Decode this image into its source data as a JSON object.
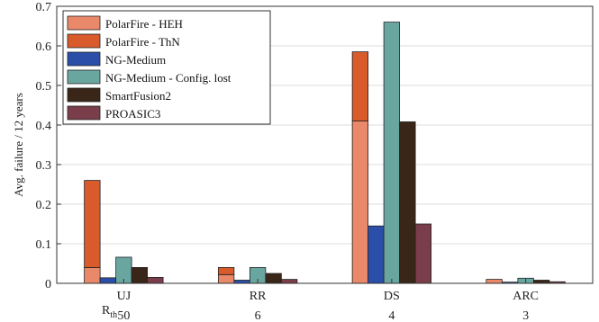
{
  "chart_data": {
    "type": "bar",
    "subtype": "grouped-stacked",
    "title": "",
    "xlabel": "",
    "ylabel": "Avg. failure / 12 years",
    "ylim": [
      0,
      0.7
    ],
    "yticks": [
      "0",
      "0.1",
      "0.2",
      "0.3",
      "0.4",
      "0.5",
      "0.6",
      "0.7"
    ],
    "grid": true,
    "legend_position": "top-left",
    "categories": [
      "UJ",
      "RR",
      "DS",
      "ARC"
    ],
    "secondary_row_label": "R",
    "secondary_row_label_sub": "th",
    "secondary_row_values": [
      "50",
      "6",
      "4",
      "3"
    ],
    "series": [
      {
        "name": "PolarFire - HEH",
        "color": "#e9896a",
        "values": [
          0.04,
          0.022,
          0.41,
          0.01
        ],
        "stack": "PolarFire"
      },
      {
        "name": "PolarFire - ThN",
        "color": "#d95a2b",
        "values": [
          0.22,
          0.018,
          0.175,
          0.0
        ],
        "stack": "PolarFire"
      },
      {
        "name": "NG-Medium",
        "color": "#2b4fa8",
        "values": [
          0.014,
          0.008,
          0.145,
          0.003
        ],
        "stack": "NG-Medium"
      },
      {
        "name": "NG-Medium - Config. lost",
        "color": "#6aa6a0",
        "values": [
          0.066,
          0.04,
          0.66,
          0.013
        ],
        "stack": "NG-Medium - Config. lost"
      },
      {
        "name": "SmartFusion2",
        "color": "#3a2618",
        "values": [
          0.04,
          0.025,
          0.408,
          0.008
        ],
        "stack": "SmartFusion2"
      },
      {
        "name": "PROASIC3",
        "color": "#7a3e4a",
        "values": [
          0.015,
          0.01,
          0.15,
          0.004
        ],
        "stack": "PROASIC3"
      }
    ]
  }
}
